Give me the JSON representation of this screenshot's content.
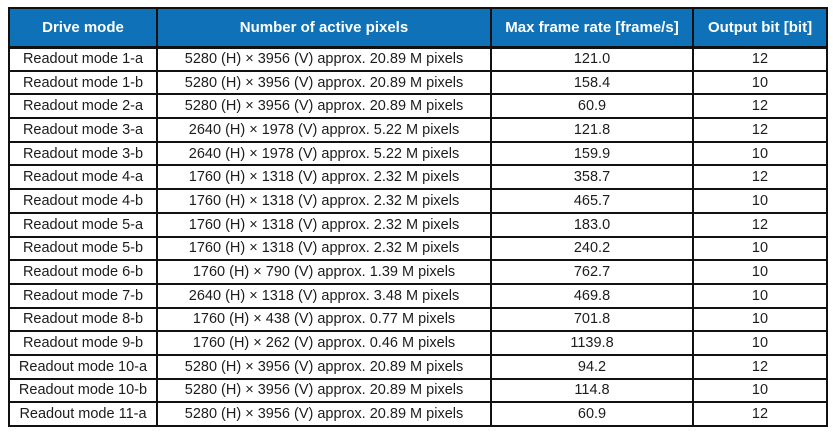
{
  "colors": {
    "header_bg": "#0f72b8",
    "header_text": "#ffffff",
    "border": "#111111",
    "body_text": "#1c1c1c",
    "background": "#ffffff"
  },
  "table": {
    "headers": [
      "Drive mode",
      "Number of active pixels",
      "Max frame rate [frame/s]",
      "Output bit [bit]"
    ],
    "column_names": [
      "drive-mode-cell",
      "active-pixels-cell",
      "frame-rate-cell",
      "output-bit-cell"
    ],
    "rows": [
      [
        "Readout mode 1-a",
        "5280 (H) × 3956 (V) approx. 20.89 M pixels",
        "121.0",
        "12"
      ],
      [
        "Readout mode 1-b",
        "5280 (H) × 3956 (V) approx. 20.89 M pixels",
        "158.4",
        "10"
      ],
      [
        "Readout mode 2-a",
        "5280 (H) × 3956 (V) approx. 20.89 M pixels",
        "60.9",
        "12"
      ],
      [
        "Readout mode 3-a",
        "2640 (H) × 1978 (V) approx. 5.22 M pixels",
        "121.8",
        "12"
      ],
      [
        "Readout mode 3-b",
        "2640 (H) × 1978 (V) approx. 5.22 M pixels",
        "159.9",
        "10"
      ],
      [
        "Readout mode 4-a",
        "1760 (H) × 1318 (V) approx. 2.32 M pixels",
        "358.7",
        "12"
      ],
      [
        "Readout mode 4-b",
        "1760 (H) × 1318 (V) approx. 2.32 M pixels",
        "465.7",
        "10"
      ],
      [
        "Readout mode 5-a",
        "1760 (H) × 1318 (V) approx. 2.32 M pixels",
        "183.0",
        "12"
      ],
      [
        "Readout mode 5-b",
        "1760 (H) × 1318 (V) approx. 2.32 M pixels",
        "240.2",
        "10"
      ],
      [
        "Readout mode 6-b",
        "1760 (H) × 790 (V) approx. 1.39 M pixels",
        "762.7",
        "10"
      ],
      [
        "Readout mode 7-b",
        "2640 (H) × 1318 (V) approx. 3.48 M pixels",
        "469.8",
        "10"
      ],
      [
        "Readout mode 8-b",
        "1760 (H) × 438 (V) approx. 0.77 M pixels",
        "701.8",
        "10"
      ],
      [
        "Readout mode 9-b",
        "1760 (H) × 262 (V) approx. 0.46 M pixels",
        "1139.8",
        "10"
      ],
      [
        "Readout mode 10-a",
        "5280 (H) × 3956 (V) approx. 20.89 M pixels",
        "94.2",
        "12"
      ],
      [
        "Readout mode 10-b",
        "5280 (H) × 3956 (V) approx. 20.89 M pixels",
        "114.8",
        "10"
      ],
      [
        "Readout mode 11-a",
        "5280 (H) × 3956 (V) approx. 20.89 M pixels",
        "60.9",
        "12"
      ]
    ]
  }
}
